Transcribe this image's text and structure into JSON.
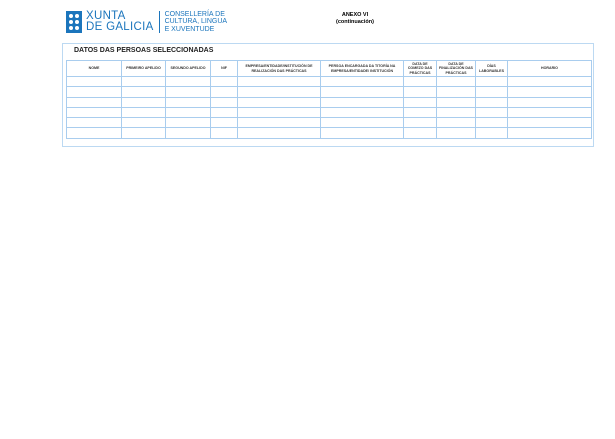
{
  "header": {
    "logo_line1": "XUNTA",
    "logo_line2": "DE GALICIA",
    "department_lines": [
      "CONSELLERÍA DE",
      "CULTURA, LINGUA",
      "E XUVENTUDE"
    ],
    "annex_title": "ANEXO VI",
    "annex_subtitle": "(continuación)"
  },
  "section": {
    "title": "DATOS DAS PERSOAS SELECCIONADAS",
    "columns": [
      "NOME",
      "PRIMEIRO APELIDO",
      "SEGUNDO APELIDO",
      "NIF",
      "EMPRESA/ENTIDADE/INSTITUCIÓN DE REALIZACIÓN DAS PRÁCTICAS",
      "PERSOA ENCARGADA DA TITORÍA NA EMPRESA/ENTIDADE/ INSTITUCIÓN",
      "DATA DE COMEZO DAS PRÁCTICAS",
      "DATA DE FINALIZACIÓN DAS PRÁCTICAS",
      "DÍAS LABORABLES",
      "HORARIO"
    ],
    "row_count": 6
  },
  "colors": {
    "brand": "#1b75bc",
    "border": "#a9cdee"
  }
}
